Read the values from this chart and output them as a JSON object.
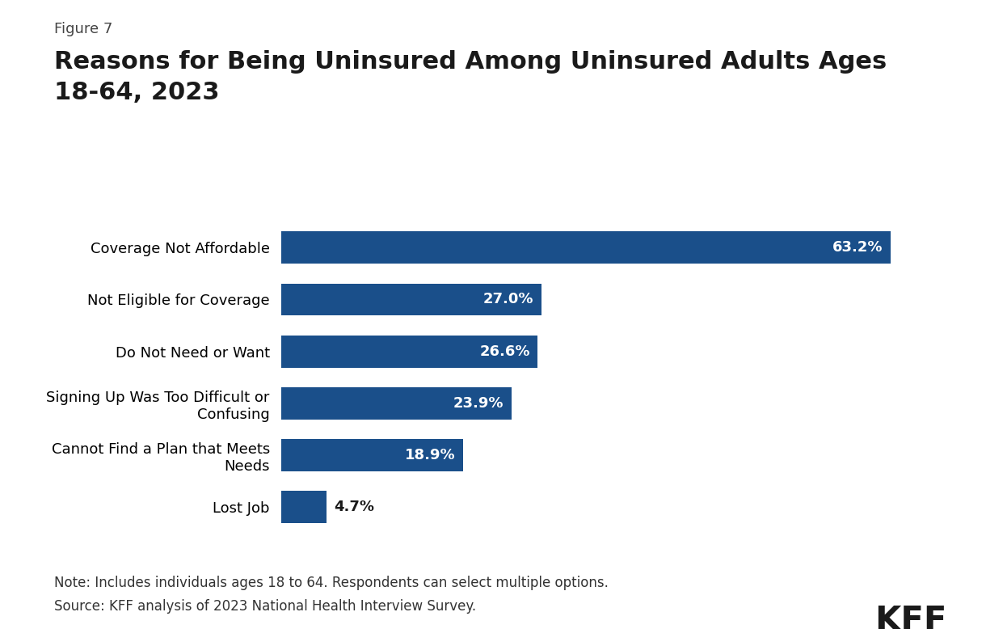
{
  "figure_label": "Figure 7",
  "title_line1": "Reasons for Being Uninsured Among Uninsured Adults Ages",
  "title_line2": "18-64, 2023",
  "categories": [
    "Coverage Not Affordable",
    "Not Eligible for Coverage",
    "Do Not Need or Want",
    "Signing Up Was Too Difficult or\nConfusing",
    "Cannot Find a Plan that Meets\nNeeds",
    "Lost Job"
  ],
  "values": [
    63.2,
    27.0,
    26.6,
    23.9,
    18.9,
    4.7
  ],
  "bar_color": "#1a4f8a",
  "label_color_inside": "#ffffff",
  "label_color_outside": "#1a1a1a",
  "note_line1": "Note: Includes individuals ages 18 to 64. Respondents can select multiple options.",
  "note_line2": "Source: KFF analysis of 2023 National Health Interview Survey.",
  "kff_label": "KFF",
  "xlim": [
    0,
    70
  ],
  "background_color": "#ffffff",
  "title_fontsize": 22,
  "figure_label_fontsize": 13,
  "bar_label_fontsize": 13,
  "note_fontsize": 12,
  "kff_fontsize": 30,
  "category_fontsize": 13
}
